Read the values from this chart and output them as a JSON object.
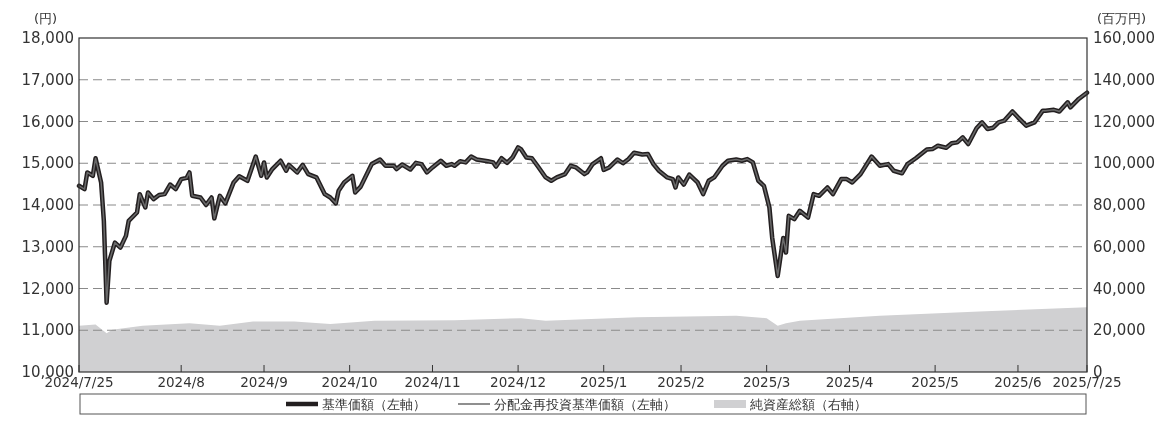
{
  "chart_data": {
    "type": "line",
    "ylabel": "(円)",
    "y2label": "(百万円)",
    "xlim": [
      "2024-07-25",
      "2025-07-25"
    ],
    "xticks": [
      {
        "value": "2024-07-25",
        "label": "2024/7/25"
      },
      {
        "value": "2024-08-31",
        "label": "2024/8"
      },
      {
        "value": "2024-09-30",
        "label": "2024/9"
      },
      {
        "value": "2024-10-31",
        "label": "2024/10"
      },
      {
        "value": "2024-11-30",
        "label": "2024/11"
      },
      {
        "value": "2024-12-31",
        "label": "2024/12"
      },
      {
        "value": "2025-01-31",
        "label": "2025/1"
      },
      {
        "value": "2025-02-28",
        "label": "2025/2"
      },
      {
        "value": "2025-03-31",
        "label": "2025/3"
      },
      {
        "value": "2025-04-30",
        "label": "2025/4"
      },
      {
        "value": "2025-05-31",
        "label": "2025/5"
      },
      {
        "value": "2025-06-30",
        "label": "2025/6"
      },
      {
        "value": "2025-07-25",
        "label": "2025/7/25"
      }
    ],
    "ylim": [
      10000,
      18000
    ],
    "yticks": [
      {
        "value": 10000,
        "label": "10,000"
      },
      {
        "value": 11000,
        "label": "11,000"
      },
      {
        "value": 12000,
        "label": "12,000"
      },
      {
        "value": 13000,
        "label": "13,000"
      },
      {
        "value": 14000,
        "label": "14,000"
      },
      {
        "value": 15000,
        "label": "15,000"
      },
      {
        "value": 16000,
        "label": "16,000"
      },
      {
        "value": 17000,
        "label": "17,000"
      },
      {
        "value": 18000,
        "label": "18,000"
      }
    ],
    "y2lim": [
      0,
      160000
    ],
    "y2ticks": [
      0,
      {
        "value": 20000,
        "label": "20,000"
      },
      {
        "value": 40000,
        "label": "40,000"
      },
      {
        "value": 60000,
        "label": "60,000"
      },
      {
        "value": 80000,
        "label": "80,000"
      },
      {
        "value": 100000,
        "label": "100,000"
      },
      {
        "value": 120000,
        "label": "120,000"
      },
      {
        "value": 140000,
        "label": "140,000"
      },
      {
        "value": 160000,
        "label": "160,000"
      }
    ],
    "grid": "y",
    "legend": "bottom",
    "x": [
      "2024-07-25",
      "2024-07-27",
      "2024-07-28",
      "2024-07-30",
      "2024-07-31",
      "2024-08-02",
      "2024-08-03",
      "2024-08-04",
      "2024-08-05",
      "2024-08-07",
      "2024-08-09",
      "2024-08-11",
      "2024-08-12",
      "2024-08-15",
      "2024-08-16",
      "2024-08-18",
      "2024-08-19",
      "2024-08-21",
      "2024-08-23",
      "2024-08-25",
      "2024-08-27",
      "2024-08-29",
      "2024-08-31",
      "2024-09-02",
      "2024-09-03",
      "2024-09-04",
      "2024-09-07",
      "2024-09-09",
      "2024-09-11",
      "2024-09-12",
      "2024-09-14",
      "2024-09-16",
      "2024-09-19",
      "2024-09-21",
      "2024-09-24",
      "2024-09-27",
      "2024-09-29",
      "2024-09-30",
      "2024-10-01",
      "2024-10-03",
      "2024-10-06",
      "2024-10-08",
      "2024-10-09",
      "2024-10-12",
      "2024-10-14",
      "2024-10-16",
      "2024-10-19",
      "2024-10-22",
      "2024-10-24",
      "2024-10-26",
      "2024-10-27",
      "2024-10-29",
      "2024-11-01",
      "2024-11-02",
      "2024-11-04",
      "2024-11-08",
      "2024-11-11",
      "2024-11-13",
      "2024-11-16",
      "2024-11-17",
      "2024-11-19",
      "2024-11-22",
      "2024-11-24",
      "2024-11-26",
      "2024-11-28",
      "2024-11-30",
      "2024-12-03",
      "2024-12-05",
      "2024-12-07",
      "2024-12-08",
      "2024-12-10",
      "2024-12-12",
      "2024-12-14",
      "2024-12-16",
      "2024-12-20",
      "2024-12-22",
      "2024-12-23",
      "2024-12-25",
      "2024-12-27",
      "2024-12-29",
      "2024-12-31",
      "2025-01-01",
      "2025-01-03",
      "2025-01-05",
      "2025-01-07",
      "2025-01-10",
      "2025-01-12",
      "2025-01-14",
      "2025-01-17",
      "2025-01-19",
      "2025-01-21",
      "2025-01-24",
      "2025-01-25",
      "2025-01-27",
      "2025-01-30",
      "2025-01-31",
      "2025-02-02",
      "2025-02-05",
      "2025-02-07",
      "2025-02-09",
      "2025-02-11",
      "2025-02-14",
      "2025-02-16",
      "2025-02-18",
      "2025-02-20",
      "2025-02-23",
      "2025-02-25",
      "2025-02-26",
      "2025-02-27",
      "2025-03-01",
      "2025-03-03",
      "2025-03-06",
      "2025-03-08",
      "2025-03-10",
      "2025-03-12",
      "2025-03-15",
      "2025-03-17",
      "2025-03-20",
      "2025-03-22",
      "2025-03-24",
      "2025-03-26",
      "2025-03-28",
      "2025-03-30",
      "2025-04-01",
      "2025-04-02",
      "2025-04-04",
      "2025-04-06",
      "2025-04-07",
      "2025-04-08",
      "2025-04-10",
      "2025-04-12",
      "2025-04-15",
      "2025-04-17",
      "2025-04-19",
      "2025-04-22",
      "2025-04-24",
      "2025-04-27",
      "2025-04-29",
      "2025-05-01",
      "2025-05-04",
      "2025-05-08",
      "2025-05-11",
      "2025-05-14",
      "2025-05-16",
      "2025-05-19",
      "2025-05-21",
      "2025-05-24",
      "2025-05-28",
      "2025-05-30",
      "2025-06-01",
      "2025-06-04",
      "2025-06-06",
      "2025-06-08",
      "2025-06-10",
      "2025-06-12",
      "2025-06-15",
      "2025-06-17",
      "2025-06-19",
      "2025-06-21",
      "2025-06-23",
      "2025-06-25",
      "2025-06-28",
      "2025-06-30",
      "2025-07-03",
      "2025-07-06",
      "2025-07-09",
      "2025-07-10",
      "2025-07-13",
      "2025-07-15",
      "2025-07-18",
      "2025-07-19",
      "2025-07-22",
      "2025-07-25"
    ],
    "series": [
      {
        "name": "基準価額（左軸）",
        "color": "#231f20",
        "values": [
          14460,
          14380,
          14780,
          14700,
          15120,
          14540,
          13620,
          11660,
          12660,
          13100,
          12980,
          13260,
          13620,
          13820,
          14260,
          13940,
          14300,
          14140,
          14240,
          14260,
          14490,
          14380,
          14620,
          14650,
          14780,
          14220,
          14180,
          14000,
          14180,
          13680,
          14220,
          14040,
          14540,
          14690,
          14580,
          15160,
          14700,
          15020,
          14660,
          14860,
          15060,
          14820,
          14960,
          14780,
          14960,
          14740,
          14660,
          14260,
          14180,
          14040,
          14340,
          14540,
          14700,
          14300,
          14440,
          14980,
          15090,
          14940,
          14940,
          14860,
          14970,
          14850,
          15010,
          14980,
          14780,
          14900,
          15060,
          14940,
          14980,
          14940,
          15050,
          15020,
          15160,
          15090,
          15050,
          15020,
          14920,
          15120,
          15010,
          15140,
          15380,
          15340,
          15140,
          15120,
          14940,
          14660,
          14580,
          14660,
          14740,
          14940,
          14900,
          14740,
          14780,
          14980,
          15120,
          14840,
          14900,
          15090,
          15000,
          15100,
          15250,
          15210,
          15220,
          14980,
          14820,
          14660,
          14620,
          14420,
          14660,
          14490,
          14730,
          14540,
          14260,
          14580,
          14660,
          14940,
          15060,
          15090,
          15060,
          15100,
          15020,
          14580,
          14460,
          13940,
          13220,
          12300,
          13210,
          12860,
          13740,
          13660,
          13860,
          13700,
          14260,
          14220,
          14420,
          14260,
          14620,
          14620,
          14540,
          14740,
          15160,
          14940,
          14980,
          14820,
          14760,
          14980,
          15120,
          15330,
          15340,
          15420,
          15370,
          15480,
          15500,
          15620,
          15460,
          15840,
          15980,
          15820,
          15850,
          15980,
          16020,
          16240,
          16100,
          15900,
          15980,
          16260,
          16260,
          16280,
          16240,
          16460,
          16340,
          16540,
          16690
        ]
      },
      {
        "name": "分配金再投資基準価額（左軸）",
        "color": "#6a6a6a",
        "values": [
          14460,
          14380,
          14780,
          14700,
          15120,
          14540,
          13620,
          11660,
          12660,
          13100,
          12980,
          13260,
          13620,
          13820,
          14260,
          13940,
          14300,
          14140,
          14240,
          14260,
          14490,
          14380,
          14620,
          14650,
          14780,
          14220,
          14180,
          14000,
          14180,
          13680,
          14220,
          14040,
          14540,
          14690,
          14580,
          15160,
          14700,
          15020,
          14660,
          14860,
          15060,
          14820,
          14960,
          14780,
          14960,
          14740,
          14660,
          14260,
          14180,
          14040,
          14340,
          14540,
          14700,
          14300,
          14440,
          14980,
          15090,
          14940,
          14940,
          14860,
          14970,
          14850,
          15010,
          14980,
          14780,
          14900,
          15060,
          14940,
          14980,
          14940,
          15050,
          15020,
          15160,
          15090,
          15050,
          15020,
          14920,
          15120,
          15010,
          15140,
          15380,
          15340,
          15140,
          15120,
          14940,
          14660,
          14580,
          14660,
          14740,
          14940,
          14900,
          14740,
          14780,
          14980,
          15120,
          14840,
          14900,
          15090,
          15000,
          15100,
          15250,
          15210,
          15220,
          14980,
          14820,
          14660,
          14620,
          14420,
          14660,
          14490,
          14730,
          14540,
          14260,
          14580,
          14660,
          14940,
          15060,
          15090,
          15060,
          15100,
          15020,
          14580,
          14460,
          13940,
          13220,
          12300,
          13210,
          12860,
          13740,
          13660,
          13860,
          13700,
          14260,
          14220,
          14420,
          14260,
          14620,
          14620,
          14540,
          14740,
          15160,
          14940,
          14980,
          14820,
          14760,
          14980,
          15120,
          15330,
          15340,
          15420,
          15370,
          15480,
          15500,
          15620,
          15460,
          15840,
          15980,
          15820,
          15850,
          15980,
          16020,
          16240,
          16100,
          15900,
          15980,
          16260,
          16260,
          16280,
          16240,
          16460,
          16340,
          16540,
          16690
        ]
      },
      {
        "name": "純資産総額（右軸）",
        "type": "area",
        "axis": "y2",
        "color": "#d0d0d2",
        "x": [
          "2024-07-25",
          "2024-07-31",
          "2024-08-04",
          "2024-08-06",
          "2024-08-17",
          "2024-09-03",
          "2024-09-14",
          "2024-09-26",
          "2024-10-11",
          "2024-10-24",
          "2024-11-09",
          "2024-12-08",
          "2025-01-01",
          "2025-01-10",
          "2025-02-12",
          "2025-03-20",
          "2025-03-31",
          "2025-04-04",
          "2025-04-07",
          "2025-04-12",
          "2025-05-11",
          "2025-06-16",
          "2025-07-25"
        ],
        "values": [
          22100,
          22700,
          18600,
          20200,
          22100,
          23400,
          22200,
          24200,
          24200,
          23000,
          24600,
          24800,
          25800,
          24600,
          26200,
          26900,
          25800,
          22100,
          23400,
          24600,
          26900,
          29000,
          31000
        ]
      }
    ]
  }
}
